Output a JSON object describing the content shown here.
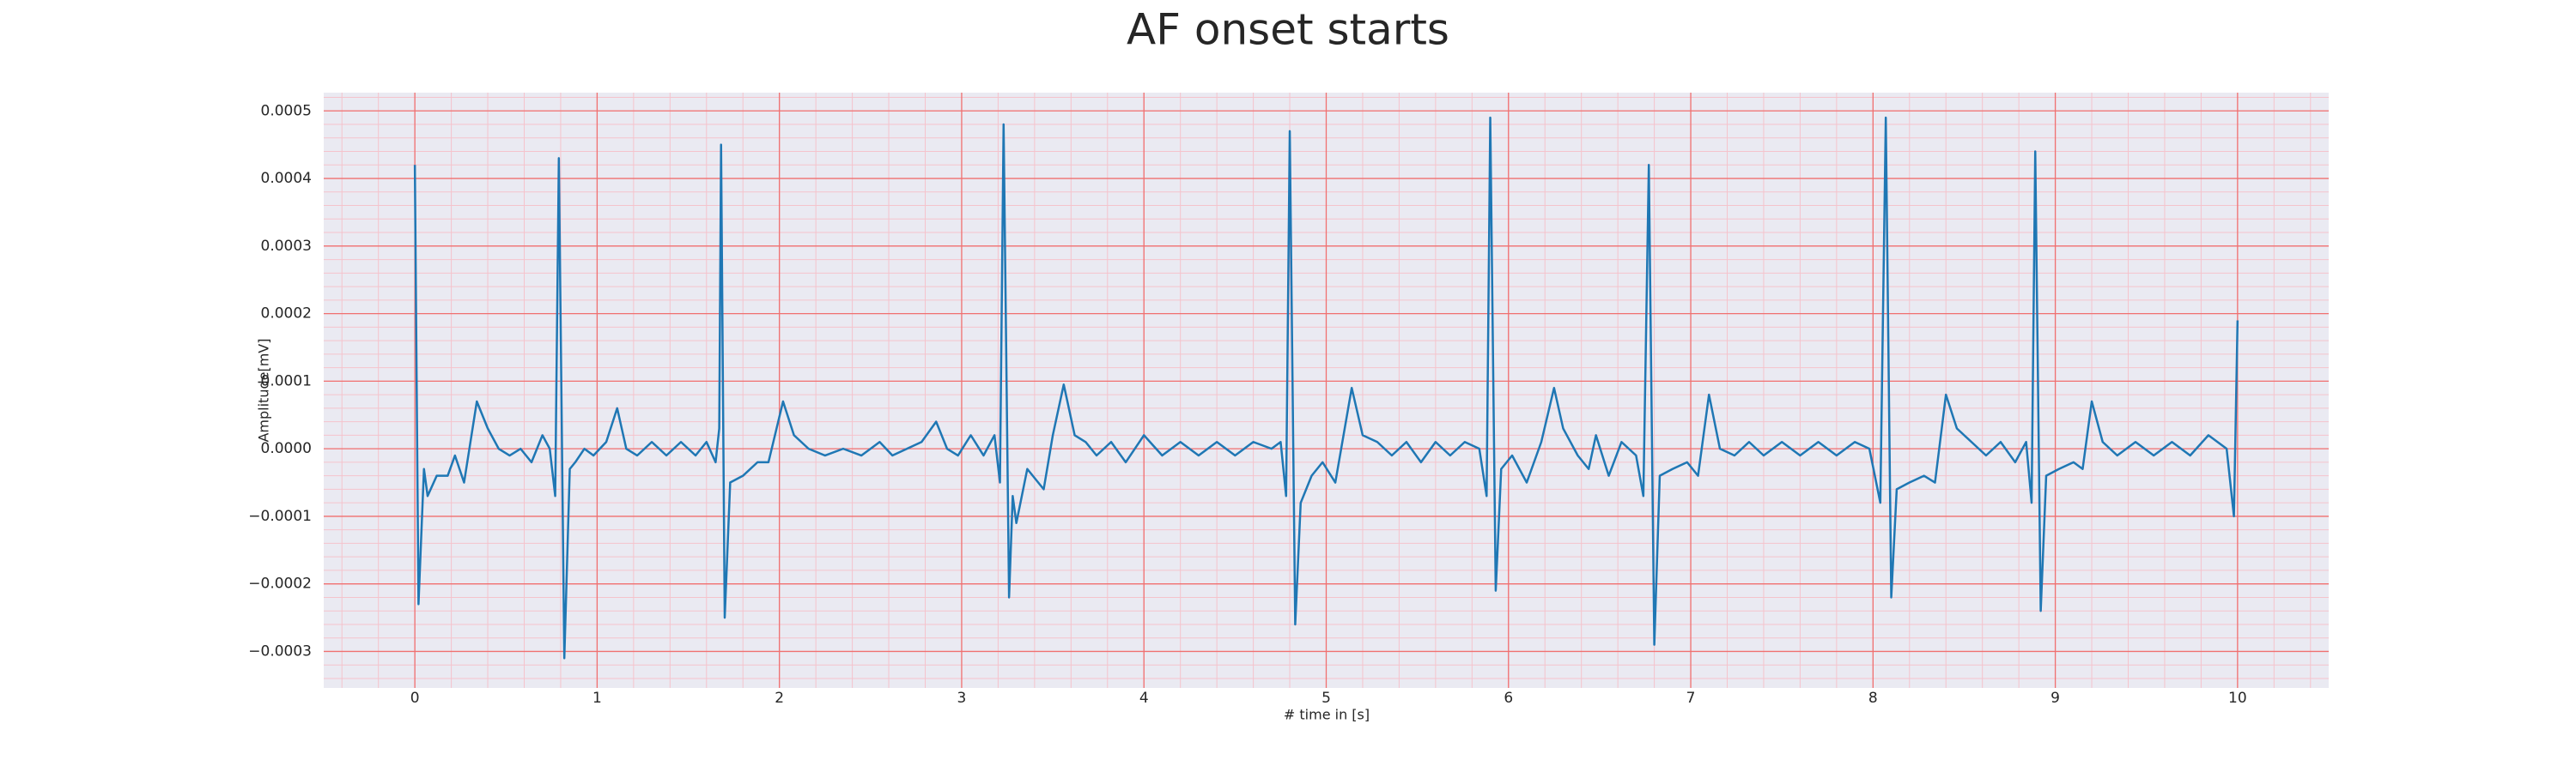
{
  "chart_data": {
    "type": "line",
    "title": "AF onset starts",
    "xlabel": "# time in [s]",
    "ylabel": "Amplitude[mV]",
    "xlim": [
      -0.5,
      10.5
    ],
    "ylim": [
      -0.000354,
      0.000527
    ],
    "xticks": [
      0,
      1,
      2,
      3,
      4,
      5,
      6,
      7,
      8,
      9,
      10
    ],
    "yticks": [
      {
        "value": -0.0003,
        "label": "−0.0003"
      },
      {
        "value": -0.0002,
        "label": "−0.0002"
      },
      {
        "value": -0.0001,
        "label": "−0.0001"
      },
      {
        "value": 0,
        "label": "0.0000"
      },
      0.0001,
      0.0002,
      0.0003,
      0.0004,
      0.0005
    ],
    "grid": true,
    "minor_grid": true,
    "color": "#1f77b4",
    "x": [
      0.0,
      0.02,
      0.05,
      0.07,
      0.12,
      0.18,
      0.22,
      0.27,
      0.34,
      0.4,
      0.46,
      0.52,
      0.58,
      0.64,
      0.7,
      0.74,
      0.77,
      0.79,
      0.82,
      0.85,
      0.88,
      0.93,
      0.98,
      1.05,
      1.11,
      1.16,
      1.22,
      1.3,
      1.38,
      1.46,
      1.54,
      1.6,
      1.65,
      1.67,
      1.68,
      1.7,
      1.73,
      1.8,
      1.88,
      1.94,
      2.02,
      2.08,
      2.16,
      2.25,
      2.35,
      2.45,
      2.55,
      2.62,
      2.7,
      2.78,
      2.86,
      2.92,
      2.98,
      3.05,
      3.12,
      3.18,
      3.21,
      3.23,
      3.26,
      3.28,
      3.3,
      3.36,
      3.45,
      3.5,
      3.56,
      3.62,
      3.68,
      3.74,
      3.82,
      3.9,
      4.0,
      4.1,
      4.2,
      4.3,
      4.4,
      4.5,
      4.6,
      4.7,
      4.75,
      4.78,
      4.8,
      4.83,
      4.86,
      4.92,
      4.98,
      5.05,
      5.14,
      5.2,
      5.28,
      5.36,
      5.44,
      5.52,
      5.6,
      5.68,
      5.76,
      5.84,
      5.88,
      5.9,
      5.93,
      5.96,
      6.02,
      6.1,
      6.18,
      6.25,
      6.3,
      6.38,
      6.44,
      6.48,
      6.55,
      6.62,
      6.7,
      6.74,
      6.77,
      6.8,
      6.83,
      6.9,
      6.98,
      7.04,
      7.1,
      7.16,
      7.24,
      7.32,
      7.4,
      7.5,
      7.6,
      7.7,
      7.8,
      7.9,
      7.98,
      8.04,
      8.07,
      8.1,
      8.13,
      8.2,
      8.28,
      8.34,
      8.4,
      8.46,
      8.54,
      8.62,
      8.7,
      8.78,
      8.84,
      8.87,
      8.89,
      8.92,
      8.95,
      9.02,
      9.1,
      9.15,
      9.2,
      9.26,
      9.34,
      9.44,
      9.54,
      9.64,
      9.74,
      9.84,
      9.94,
      9.98,
      10.0
    ],
    "values": [
      0.00042,
      -0.00023,
      -3e-05,
      -7e-05,
      -4e-05,
      -4e-05,
      -1e-05,
      -5e-05,
      7e-05,
      3e-05,
      0.0,
      -1e-05,
      0.0,
      -2e-05,
      2e-05,
      0.0,
      -7e-05,
      0.00043,
      -0.00031,
      -3e-05,
      -2e-05,
      0.0,
      -1e-05,
      1e-05,
      6e-05,
      0.0,
      -1e-05,
      1e-05,
      -1e-05,
      1e-05,
      -1e-05,
      1e-05,
      -2e-05,
      3e-05,
      0.00045,
      -0.00025,
      -5e-05,
      -4e-05,
      -2e-05,
      -2e-05,
      7e-05,
      2e-05,
      0.0,
      -1e-05,
      0.0,
      -1e-05,
      1e-05,
      -1e-05,
      0.0,
      1e-05,
      4e-05,
      0.0,
      -1e-05,
      2e-05,
      -1e-05,
      2e-05,
      -5e-05,
      0.00048,
      -0.00022,
      -7e-05,
      -0.00011,
      -3e-05,
      -6e-05,
      2e-05,
      9.5e-05,
      2e-05,
      1e-05,
      -1e-05,
      1e-05,
      -2e-05,
      2e-05,
      -1e-05,
      1e-05,
      -1e-05,
      1e-05,
      -1e-05,
      1e-05,
      0.0,
      1e-05,
      -7e-05,
      0.00047,
      -0.00026,
      -8e-05,
      -4e-05,
      -2e-05,
      -5e-05,
      9e-05,
      2e-05,
      1e-05,
      -1e-05,
      1e-05,
      -2e-05,
      1e-05,
      -1e-05,
      1e-05,
      0.0,
      -7e-05,
      0.00049,
      -0.00021,
      -3e-05,
      -1e-05,
      -5e-05,
      1e-05,
      9e-05,
      3e-05,
      -1e-05,
      -3e-05,
      2e-05,
      -4e-05,
      1e-05,
      -1e-05,
      -7e-05,
      0.00042,
      -0.00029,
      -4e-05,
      -3e-05,
      -2e-05,
      -4e-05,
      8e-05,
      0.0,
      -1e-05,
      1e-05,
      -1e-05,
      1e-05,
      -1e-05,
      1e-05,
      -1e-05,
      1e-05,
      0.0,
      -8e-05,
      0.00049,
      -0.00022,
      -6e-05,
      -5e-05,
      -4e-05,
      -5e-05,
      8e-05,
      3e-05,
      1e-05,
      -1e-05,
      1e-05,
      -2e-05,
      1e-05,
      -8e-05,
      0.00044,
      -0.00024,
      -4e-05,
      -3e-05,
      -2e-05,
      -3e-05,
      7e-05,
      1e-05,
      -1e-05,
      1e-05,
      -1e-05,
      1e-05,
      -1e-05,
      2e-05,
      0.0,
      -0.0001,
      0.00019
    ]
  }
}
